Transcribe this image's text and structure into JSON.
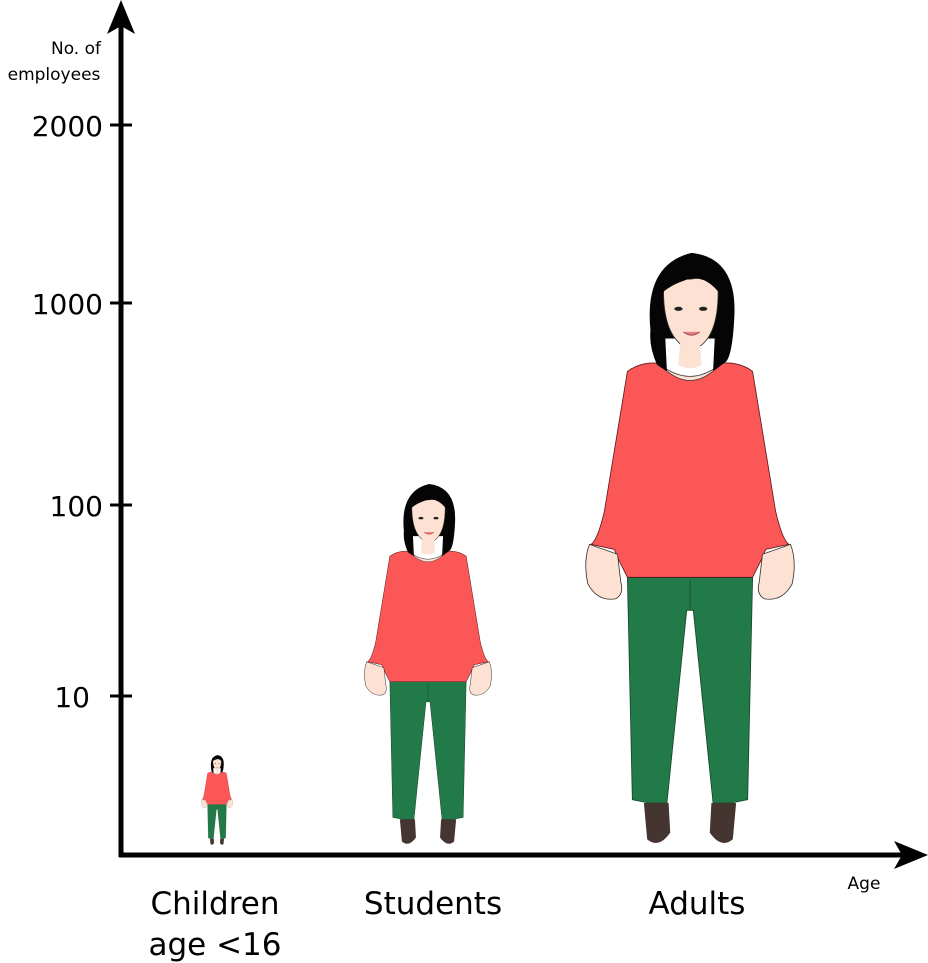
{
  "chart_data": {
    "type": "bar",
    "style": "pictogram",
    "ylabel_line1": "No. of",
    "ylabel_line2": "employees",
    "xlabel": "Age",
    "yscale": "log",
    "yticks": [
      {
        "value": 10,
        "label": "10"
      },
      {
        "value": 100,
        "label": "100"
      },
      {
        "value": 1000,
        "label": "1000"
      },
      {
        "value": 2000,
        "label": "2000"
      }
    ],
    "categories": [
      {
        "label_line1": "Children",
        "label_line2": "age <16"
      },
      {
        "label_line1": "Students",
        "label_line2": ""
      },
      {
        "label_line1": "Adults",
        "label_line2": ""
      }
    ],
    "values": [
      5,
      120,
      1800
    ],
    "colors": {
      "shirt": "#fa5756",
      "pants": "#217a47",
      "skin": "#fde1d2",
      "hair": "#050505",
      "shoes": "#453531",
      "axis": "#000000"
    }
  }
}
